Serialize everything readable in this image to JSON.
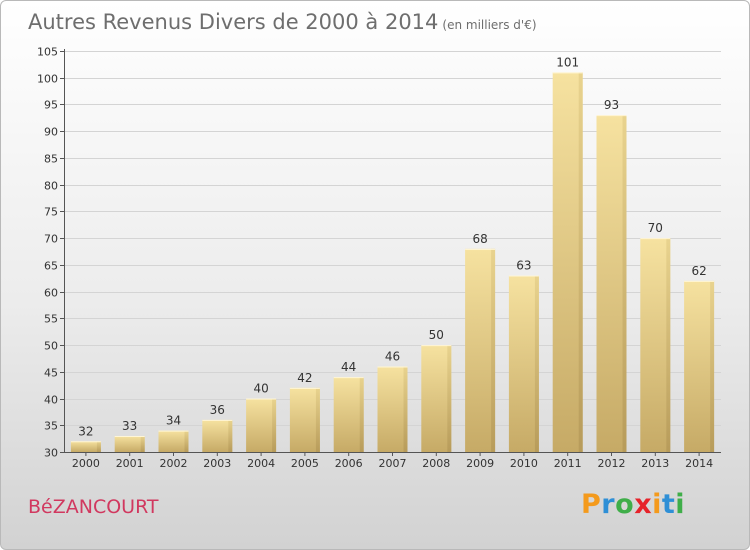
{
  "header": {
    "title": "Autres Revenus Divers de 2000 à 2014",
    "subtitle": "(en milliers d'€)"
  },
  "footer": {
    "town": "BéZANCOURT",
    "logo_text": "Proxiti",
    "logo_colors": [
      "#f49a1c",
      "#2e8fd6",
      "#3fae49",
      "#e6232a",
      "#f49a1c",
      "#2e8fd6",
      "#3fae49"
    ]
  },
  "chart_data": {
    "type": "bar",
    "categories": [
      "2000",
      "2001",
      "2002",
      "2003",
      "2004",
      "2005",
      "2006",
      "2007",
      "2008",
      "2009",
      "2010",
      "2011",
      "2012",
      "2013",
      "2014"
    ],
    "values": [
      32,
      33,
      34,
      36,
      40,
      42,
      44,
      46,
      50,
      68,
      63,
      101,
      93,
      70,
      62
    ],
    "ylim": [
      30,
      105
    ],
    "yticks": [
      30,
      35,
      40,
      45,
      50,
      55,
      60,
      65,
      70,
      75,
      80,
      85,
      90,
      95,
      100,
      105
    ],
    "grid": true,
    "bar_color": "#e8c979"
  }
}
